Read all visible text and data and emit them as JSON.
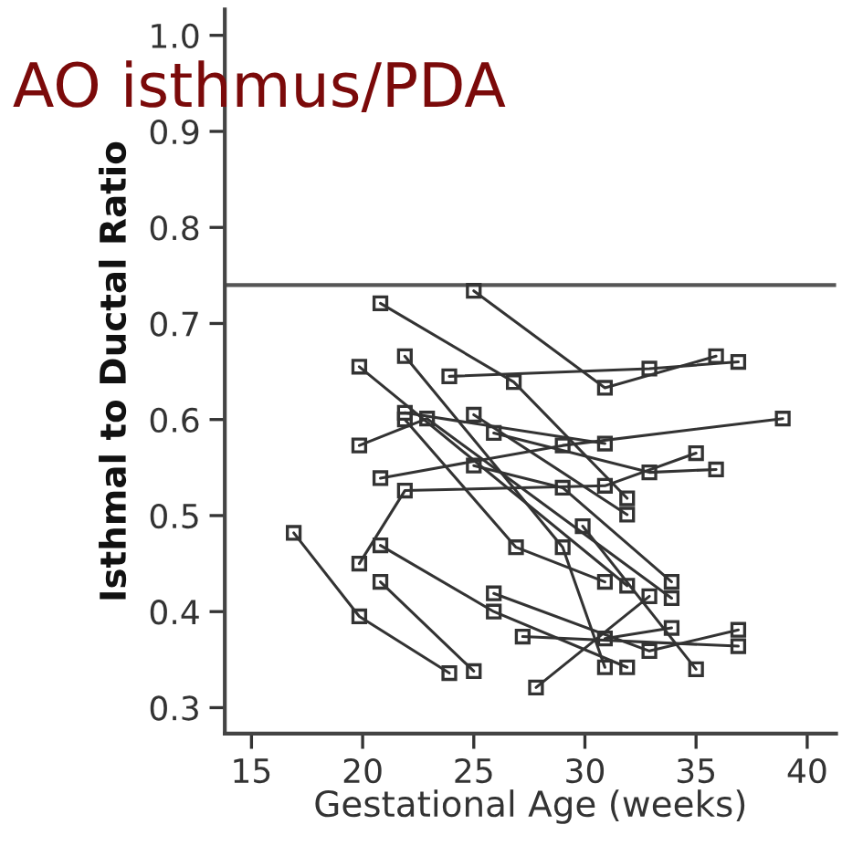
{
  "chart_data": {
    "type": "line",
    "title": "AO isthmus/PDA",
    "xlabel": "Gestational Age (weeks)",
    "ylabel": "Isthmal to Ductal Ratio",
    "xlim": [
      13.8,
      41.3
    ],
    "ylim": [
      0.273,
      1.027
    ],
    "xticks": [
      15,
      20,
      25,
      30,
      35,
      40
    ],
    "yticks": [
      {
        "value": 0.3,
        "label": "0.3"
      },
      {
        "value": 0.4,
        "label": "0.4"
      },
      {
        "value": 0.5,
        "label": "0.5"
      },
      {
        "value": 0.6,
        "label": "0.6"
      },
      {
        "value": 0.7,
        "label": "0.7"
      },
      {
        "value": 0.8,
        "label": "0.8"
      },
      {
        "value": 0.9,
        "label": "0.9"
      },
      {
        "value": 1.0,
        "label": "1.0"
      }
    ],
    "marker": "square",
    "line_style": "solid",
    "grid": false,
    "legend": false,
    "ref_lines": [
      {
        "axis": "y",
        "value": 0.74,
        "color": "#555555"
      }
    ],
    "series": [
      {
        "color": "#333333",
        "x": [
          25,
          30.9,
          35.9
        ],
        "values": [
          0.734,
          0.633,
          0.666
        ]
      },
      {
        "color": "#333333",
        "x": [
          23.9,
          32.9,
          36.9
        ],
        "values": [
          0.645,
          0.653,
          0.66
        ]
      },
      {
        "color": "#333333",
        "x": [
          20.8,
          26.8,
          31.9
        ],
        "values": [
          0.721,
          0.639,
          0.518
        ]
      },
      {
        "color": "#333333",
        "x": [
          19.85,
          31.9
        ],
        "values": [
          0.655,
          0.427
        ]
      },
      {
        "color": "#333333",
        "x": [
          21.9,
          29.0,
          30.9
        ],
        "values": [
          0.666,
          0.467,
          0.342
        ]
      },
      {
        "color": "#333333",
        "x": [
          21.9,
          30.9
        ],
        "values": [
          0.607,
          0.575
        ]
      },
      {
        "color": "#333333",
        "x": [
          21.9,
          26.9,
          30.9
        ],
        "values": [
          0.6,
          0.467,
          0.431
        ]
      },
      {
        "color": "#333333",
        "x": [
          19.85,
          22.9,
          33.9
        ],
        "values": [
          0.573,
          0.601,
          0.414
        ]
      },
      {
        "color": "#333333",
        "x": [
          25,
          31.9
        ],
        "values": [
          0.605,
          0.501
        ]
      },
      {
        "color": "#333333",
        "x": [
          25.9,
          32.9,
          35.9
        ],
        "values": [
          0.586,
          0.545,
          0.548
        ]
      },
      {
        "color": "#333333",
        "x": [
          20.8,
          29.0,
          38.9
        ],
        "values": [
          0.539,
          0.573,
          0.601
        ]
      },
      {
        "color": "#333333",
        "x": [
          19.85,
          21.9,
          30.9,
          35.0
        ],
        "values": [
          0.45,
          0.526,
          0.531,
          0.565
        ]
      },
      {
        "color": "#333333",
        "x": [
          25,
          29.0,
          33.9
        ],
        "values": [
          0.552,
          0.529,
          0.431
        ]
      },
      {
        "color": "#333333",
        "x": [
          16.9,
          19.85,
          23.9
        ],
        "values": [
          0.482,
          0.395,
          0.336
        ]
      },
      {
        "color": "#333333",
        "x": [
          20.8,
          25.9,
          31.9
        ],
        "values": [
          0.469,
          0.4,
          0.342
        ]
      },
      {
        "color": "#333333",
        "x": [
          20.8,
          25
        ],
        "values": [
          0.431,
          0.338
        ]
      },
      {
        "color": "#333333",
        "x": [
          25.9,
          32.9,
          36.9
        ],
        "values": [
          0.419,
          0.359,
          0.381
        ]
      },
      {
        "color": "#333333",
        "x": [
          27.2,
          36.9
        ],
        "values": [
          0.374,
          0.364
        ]
      },
      {
        "color": "#333333",
        "x": [
          27.8,
          32.9
        ],
        "values": [
          0.321,
          0.416
        ]
      },
      {
        "color": "#333333",
        "x": [
          29.9,
          35.0
        ],
        "values": [
          0.489,
          0.34
        ]
      },
      {
        "color": "#333333",
        "x": [
          30.9,
          33.9
        ],
        "values": [
          0.372,
          0.383
        ]
      }
    ]
  }
}
